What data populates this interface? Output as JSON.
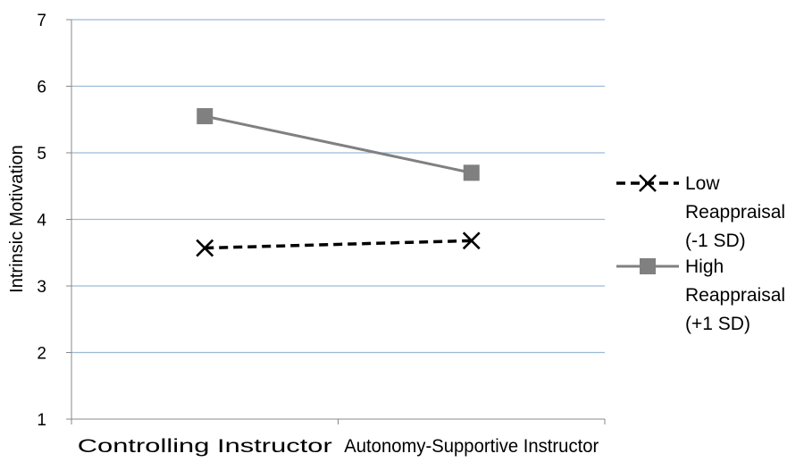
{
  "chart_data": {
    "type": "line",
    "categories": [
      "Controlling Instructor",
      "Autonomy-Supportive Instructor"
    ],
    "ylabel": "Intrinsic Motivation",
    "ylim": [
      1,
      7
    ],
    "yticks": [
      "1",
      "2",
      "3",
      "4",
      "5",
      "6",
      "7"
    ],
    "grid": true,
    "legend_position": "right",
    "series": [
      {
        "name_lines": [
          "Low",
          "Reappraisal",
          "(-1 SD)"
        ],
        "values": [
          3.57,
          3.68
        ],
        "color": "#000000",
        "line_style": "dashed",
        "marker": "x"
      },
      {
        "name_lines": [
          "High",
          "Reappraisal",
          "(+1 SD)"
        ],
        "values": [
          5.55,
          4.7
        ],
        "color": "#808080",
        "line_style": "solid",
        "marker": "square"
      }
    ]
  }
}
